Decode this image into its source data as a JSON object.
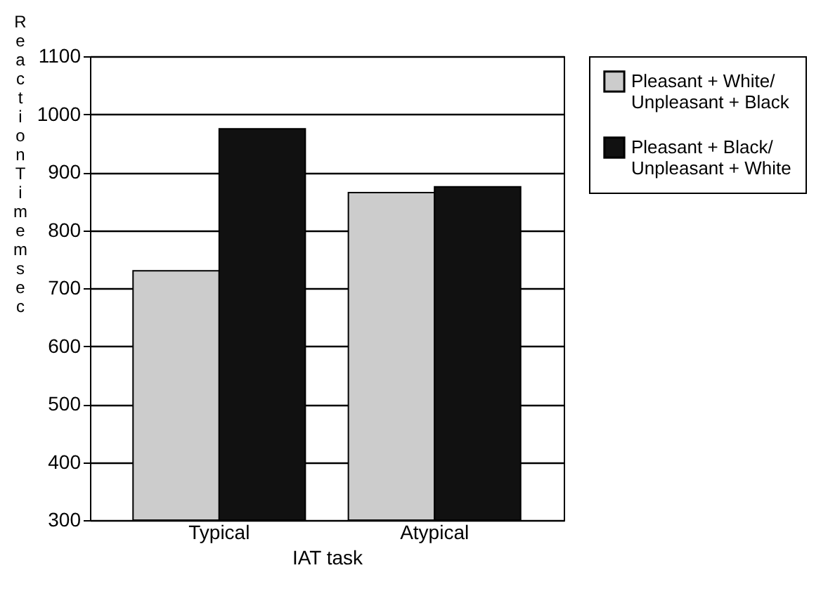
{
  "chart_data": {
    "type": "bar",
    "xlabel": "IAT task",
    "ylabel": "Reaction Time msec",
    "categories": [
      "Typical",
      "Atypical"
    ],
    "series": [
      {
        "name": "Pleasant + White/Unpleasant + Black",
        "color": "#cccccc",
        "values": [
          730,
          865
        ]
      },
      {
        "name": "Pleasant + Black/Unpleasant + White",
        "color": "#111111",
        "values": [
          975,
          875
        ]
      }
    ],
    "ylim": [
      300,
      1100
    ],
    "yticks": [
      300,
      400,
      500,
      600,
      700,
      800,
      900,
      {
        "value": 1000,
        "label": "1000"
      },
      {
        "value": 1100,
        "label": "1100"
      }
    ],
    "grid": "y",
    "legend": "right"
  }
}
